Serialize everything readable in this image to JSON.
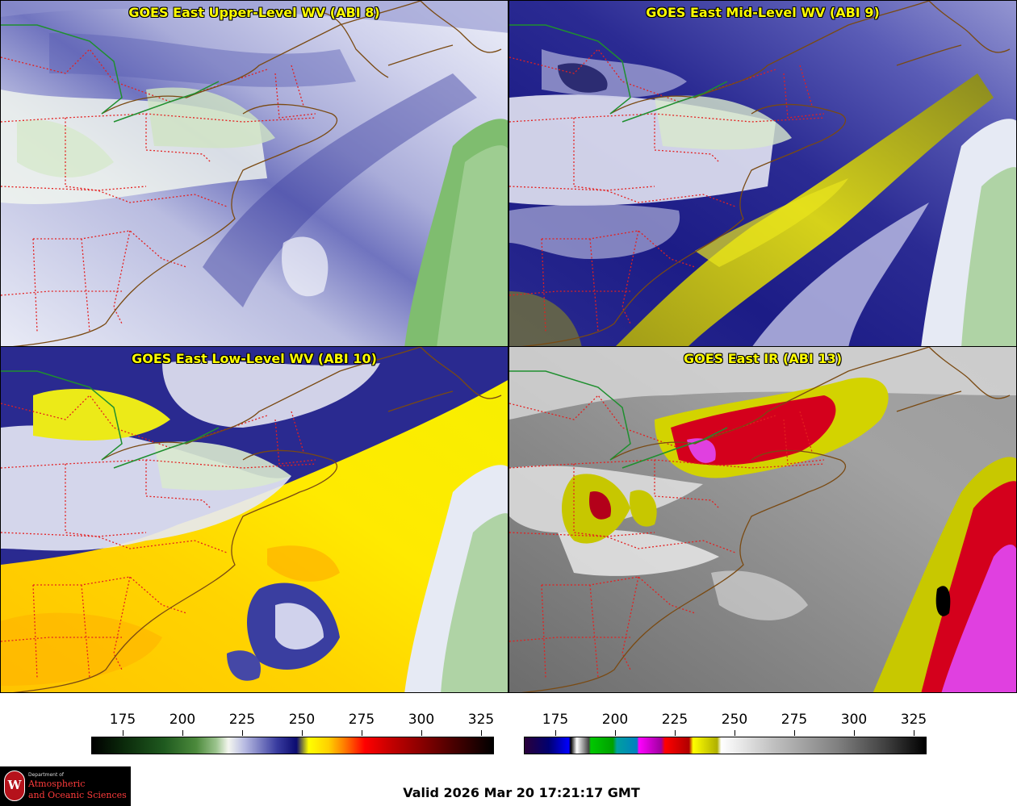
{
  "panels": [
    {
      "id": "p1",
      "title": "GOES East Upper-Level WV (ABI 8)",
      "palette": "wv_upper"
    },
    {
      "id": "p2",
      "title": "GOES East Mid-Level WV (ABI 9)",
      "palette": "wv_mid"
    },
    {
      "id": "p3",
      "title": "GOES East Low-Level WV (ABI 10)",
      "palette": "wv_low"
    },
    {
      "id": "p4",
      "title": "GOES East IR (ABI 13)",
      "palette": "ir"
    }
  ],
  "colorbars": [
    {
      "name": "wv-colorbar",
      "ticks": [
        "175",
        "200",
        "225",
        "250",
        "275",
        "300",
        "325"
      ]
    },
    {
      "name": "ir-colorbar",
      "ticks": [
        "175",
        "200",
        "225",
        "250",
        "275",
        "300",
        "325"
      ]
    }
  ],
  "colors": {
    "state_borders": "#e32020",
    "coast": "#7a4a12",
    "canada_border": "#1f8f2f",
    "title": "#ffff00"
  },
  "logo": {
    "shield": "W",
    "line1": "Department of",
    "line2": "Atmospheric",
    "line3": "and Oceanic Sciences"
  },
  "valid_text": "Valid 2026 Mar 20 17:21:17 GMT"
}
